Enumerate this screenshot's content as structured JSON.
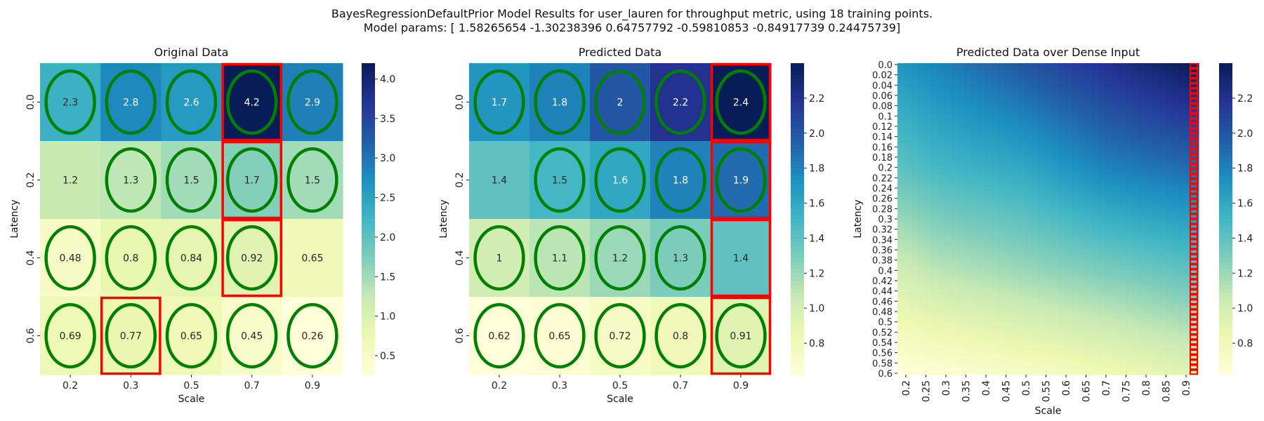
{
  "header": {
    "title_line1": "BayesRegressionDefaultPrior Model Results for user_lauren for throughput metric, using 18 training points.",
    "title_line2": "Model params: [ 1.58265654 -1.30238396  0.64757792 -0.59810853 -0.84917739  0.24475739]"
  },
  "colors": {
    "highlight_ellipse": "#008000",
    "highlight_box": "#ff0000",
    "colormap": "YlGnBu"
  },
  "chart_data": [
    {
      "type": "heatmap",
      "title": "Original Data",
      "xlabel": "Scale",
      "ylabel": "Latency",
      "x_categories": [
        "0.2",
        "0.3",
        "0.5",
        "0.7",
        "0.9"
      ],
      "y_categories": [
        "0.0",
        "0.2",
        "0.4",
        "0.6"
      ],
      "values": [
        [
          2.3,
          2.8,
          2.6,
          4.2,
          2.9
        ],
        [
          1.2,
          1.3,
          1.5,
          1.7,
          1.5
        ],
        [
          0.48,
          0.8,
          0.84,
          0.92,
          0.65
        ],
        [
          0.69,
          0.77,
          0.65,
          0.45,
          0.26
        ]
      ],
      "colorbar": {
        "min": 0.26,
        "max": 4.2,
        "ticks": [
          0.5,
          1.0,
          1.5,
          2.0,
          2.5,
          3.0,
          3.5,
          4.0
        ],
        "tick_labels": [
          "0.5",
          "1.0",
          "1.5",
          "2.0",
          "2.5",
          "3.0",
          "3.5",
          "4.0"
        ]
      },
      "ellipses": [
        [
          0,
          0
        ],
        [
          0,
          1
        ],
        [
          0,
          2
        ],
        [
          0,
          3
        ],
        [
          0,
          4
        ],
        [
          1,
          1
        ],
        [
          1,
          2
        ],
        [
          1,
          3
        ],
        [
          1,
          4
        ],
        [
          2,
          0
        ],
        [
          2,
          1
        ],
        [
          2,
          2
        ],
        [
          2,
          3
        ],
        [
          3,
          0
        ],
        [
          3,
          1
        ],
        [
          3,
          2
        ],
        [
          3,
          3
        ],
        [
          3,
          4
        ]
      ],
      "boxes": [
        [
          0,
          3
        ],
        [
          1,
          3
        ],
        [
          2,
          3
        ],
        [
          3,
          1
        ]
      ]
    },
    {
      "type": "heatmap",
      "title": "Predicted Data",
      "xlabel": "Scale",
      "ylabel": "Latency",
      "x_categories": [
        "0.2",
        "0.3",
        "0.5",
        "0.7",
        "0.9"
      ],
      "y_categories": [
        "0.0",
        "0.2",
        "0.4",
        "0.6"
      ],
      "values": [
        [
          1.7,
          1.8,
          2,
          2.2,
          2.4
        ],
        [
          1.4,
          1.5,
          1.6,
          1.8,
          1.9
        ],
        [
          1,
          1.1,
          1.2,
          1.3,
          1.4
        ],
        [
          0.62,
          0.65,
          0.72,
          0.8,
          0.91
        ]
      ],
      "colorbar": {
        "min": 0.62,
        "max": 2.4,
        "ticks": [
          0.8,
          1.0,
          1.2,
          1.4,
          1.6,
          1.8,
          2.0,
          2.2
        ],
        "tick_labels": [
          "0.8",
          "1.0",
          "1.2",
          "1.4",
          "1.6",
          "1.8",
          "2.0",
          "2.2"
        ]
      },
      "ellipses": [
        [
          0,
          0
        ],
        [
          0,
          1
        ],
        [
          0,
          2
        ],
        [
          0,
          3
        ],
        [
          0,
          4
        ],
        [
          1,
          1
        ],
        [
          1,
          2
        ],
        [
          1,
          3
        ],
        [
          1,
          4
        ],
        [
          2,
          0
        ],
        [
          2,
          1
        ],
        [
          2,
          2
        ],
        [
          2,
          3
        ],
        [
          3,
          0
        ],
        [
          3,
          1
        ],
        [
          3,
          2
        ],
        [
          3,
          3
        ],
        [
          3,
          4
        ]
      ],
      "boxes": [
        [
          0,
          4
        ],
        [
          1,
          4
        ],
        [
          2,
          4
        ],
        [
          3,
          4
        ]
      ]
    },
    {
      "type": "heatmap",
      "title": "Predicted Data over Dense Input",
      "xlabel": "Scale",
      "ylabel": "Latency",
      "x_tick_labels": [
        "0.2",
        "0.25",
        "0.3",
        "0.35",
        "0.4",
        "0.45",
        "0.5",
        "0.55",
        "0.6",
        "0.65",
        "0.7",
        "0.75",
        "0.8",
        "0.85",
        "0.9"
      ],
      "y_tick_labels": [
        "0.0",
        "0.02",
        "0.04",
        "0.06",
        "0.08",
        "0.1",
        "0.12",
        "0.14",
        "0.16",
        "0.18",
        "0.2",
        "0.22",
        "0.24",
        "0.26",
        "0.28",
        "0.3",
        "0.32",
        "0.34",
        "0.36",
        "0.38",
        "0.4",
        "0.42",
        "0.44",
        "0.46",
        "0.48",
        "0.5",
        "0.52",
        "0.54",
        "0.56",
        "0.58",
        "0.6"
      ],
      "x_range": [
        0.2,
        0.92
      ],
      "y_range": [
        0.0,
        0.6
      ],
      "colorbar": {
        "min": 0.62,
        "max": 2.4,
        "ticks": [
          0.8,
          1.0,
          1.2,
          1.4,
          1.6,
          1.8,
          2.0,
          2.2
        ],
        "tick_labels": [
          "0.8",
          "1.0",
          "1.2",
          "1.4",
          "1.6",
          "1.8",
          "2.0",
          "2.2"
        ]
      },
      "highlight_column_x": 0.92
    }
  ]
}
